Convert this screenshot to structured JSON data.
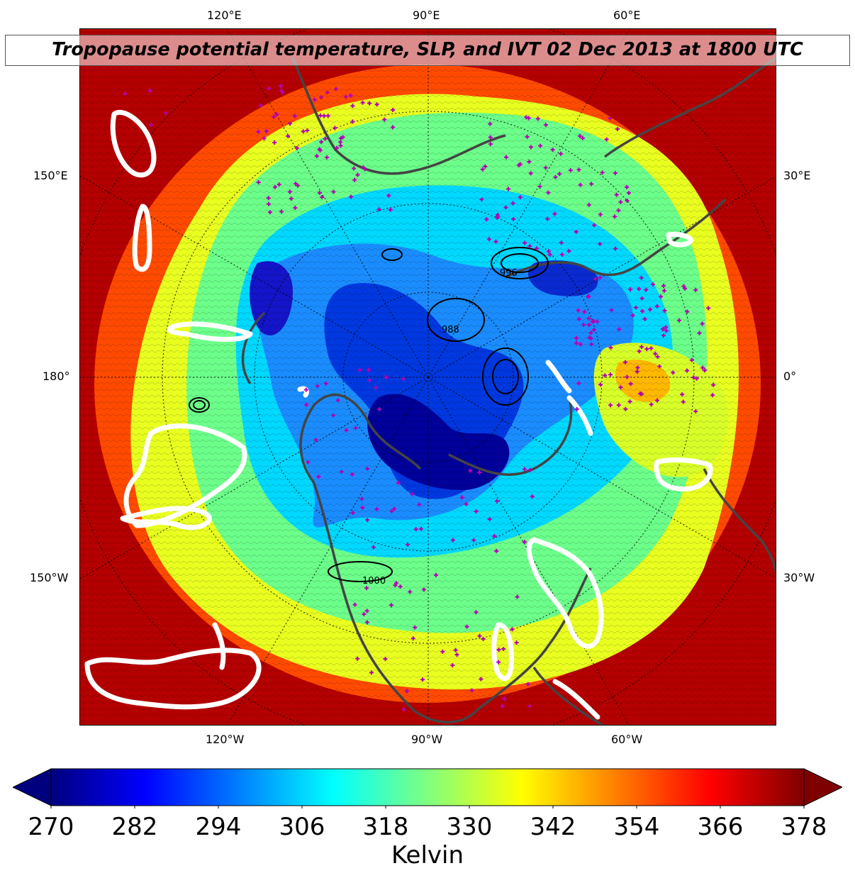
{
  "title": "Tropopause potential temperature, SLP, and IVT 02 Dec 2013 at 1800 UTC",
  "longitude_labels": {
    "top": [
      "120°E",
      "90°E",
      "60°E"
    ],
    "left": [
      "150°E",
      "180°",
      "150°W"
    ],
    "right": [
      "30°E",
      "0°",
      "30°W"
    ],
    "bottom": [
      "120°W",
      "90°W",
      "60°W"
    ]
  },
  "map": {
    "projection": "north-polar-stereographic",
    "fill_field": "tropopause potential temperature",
    "contour_field": "sea level pressure",
    "ivt_contour_color": "#ffffff",
    "coastline_color": "#444444",
    "station_marker_color": "#b400b4",
    "slp_contour_labels": [
      "996",
      "988",
      "1000"
    ]
  },
  "colorbar": {
    "colormap": "jet",
    "label": "Kelvin",
    "ticks": [
      "270",
      "282",
      "294",
      "306",
      "318",
      "330",
      "342",
      "354",
      "366",
      "378"
    ],
    "min": 270,
    "max": 378,
    "extend": "both",
    "colors": [
      "#00007f",
      "#0000ff",
      "#007fff",
      "#00ffff",
      "#7fff7f",
      "#ffff00",
      "#ff7f00",
      "#ff0000",
      "#7f0000"
    ]
  }
}
